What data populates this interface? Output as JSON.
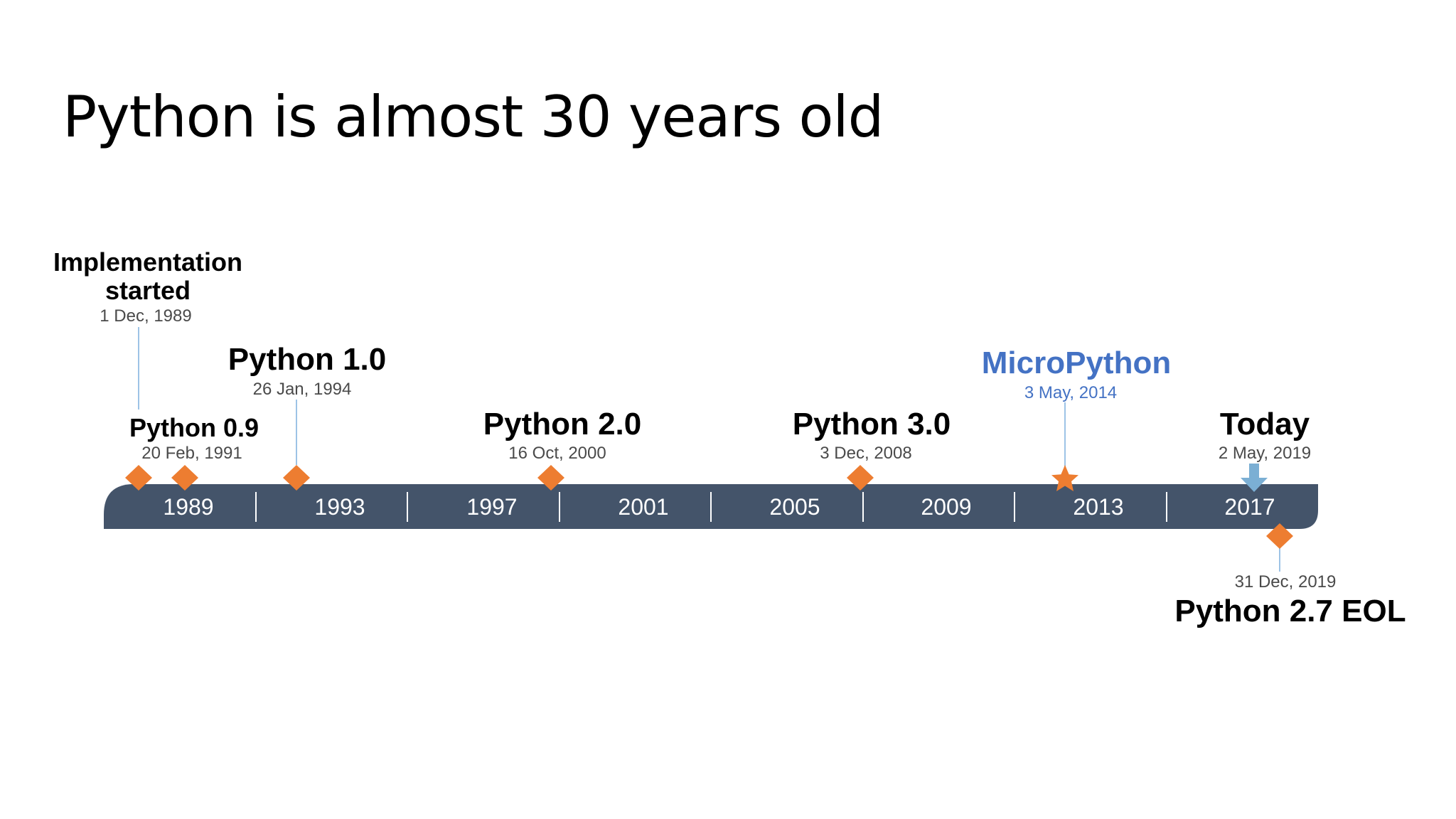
{
  "slide": {
    "title": "Python is almost 30 years old"
  },
  "timeline": {
    "bar_color": "#44546a",
    "marker_color": "#ed7d31",
    "accent_blue": "#4472c4",
    "today_arrow_color": "#7bafd4",
    "connector_color": "#9dc3e6",
    "years": [
      "1989",
      "1993",
      "1997",
      "2001",
      "2005",
      "2009",
      "2013",
      "2017"
    ],
    "events": {
      "implementation_started": {
        "title_line1": "Implementation",
        "title_line2": "started",
        "date": "1 Dec, 1989",
        "marker": "diamond"
      },
      "python_0_9": {
        "title": "Python 0.9",
        "date": "20 Feb, 1991",
        "marker": "diamond"
      },
      "python_1_0": {
        "title": "Python 1.0",
        "date": "26 Jan, 1994",
        "marker": "diamond"
      },
      "python_2_0": {
        "title": "Python 2.0",
        "date": "16 Oct, 2000",
        "marker": "diamond"
      },
      "python_3_0": {
        "title": "Python 3.0",
        "date": "3 Dec, 2008",
        "marker": "diamond"
      },
      "micropython": {
        "title": "MicroPython",
        "date": "3 May, 2014",
        "marker": "star"
      },
      "today": {
        "title": "Today",
        "date": "2 May, 2019",
        "marker": "arrow-down"
      },
      "python_2_7_eol": {
        "title": "Python 2.7 EOL",
        "date": "31 Dec, 2019",
        "marker": "diamond"
      }
    }
  }
}
